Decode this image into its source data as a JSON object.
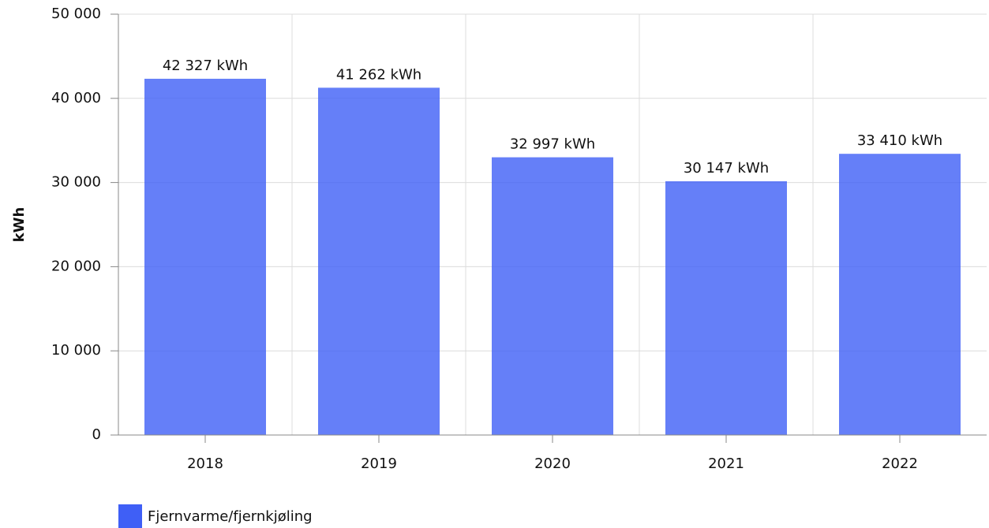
{
  "chart_data": {
    "type": "bar",
    "y_label": "kWh",
    "categories": [
      "2018",
      "2019",
      "2020",
      "2021",
      "2022"
    ],
    "series": [
      {
        "name": "Fjernvarme/fjernkjøling",
        "color": "#3f5ff6",
        "values": [
          42327,
          41262,
          32997,
          30147,
          33410
        ],
        "value_labels": [
          "42 327 kWh",
          "41 262 kWh",
          "32 997 kWh",
          "30 147 kWh",
          "33 410 kWh"
        ]
      }
    ],
    "ylim": [
      0,
      50000
    ],
    "yticks": [
      0,
      {
        "value": 10000,
        "label": "10 000"
      },
      {
        "value": 20000,
        "label": "20 000"
      },
      {
        "value": 30000,
        "label": "30 000"
      },
      {
        "value": 40000,
        "label": "40 000"
      },
      {
        "value": 50000,
        "label": "50 000"
      }
    ],
    "grid": true
  }
}
